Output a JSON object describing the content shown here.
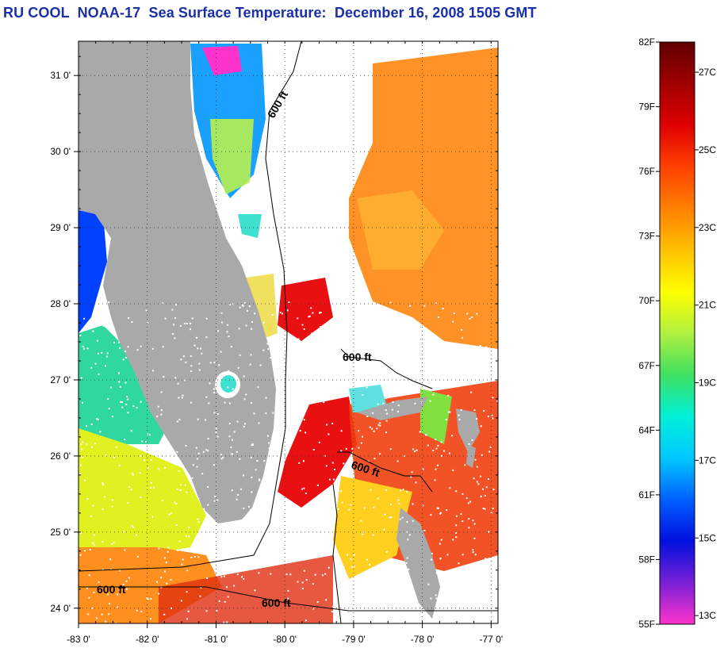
{
  "title": "RU COOL  NOAA-17  Sea Surface Temperature:  December 16, 2008 1505 GMT",
  "map": {
    "lon_range": [
      -83.0,
      -76.9
    ],
    "lat_range": [
      23.8,
      31.45
    ],
    "lon_ticks": [
      {
        "value": -83,
        "label": "-83 0'"
      },
      {
        "value": -82,
        "label": "-82 0'"
      },
      {
        "value": -81,
        "label": "-81 0'"
      },
      {
        "value": -80,
        "label": "-80 0'"
      },
      {
        "value": -79,
        "label": "-79 0'"
      },
      {
        "value": -78,
        "label": "-78 0'"
      },
      {
        "value": -77,
        "label": "-77 0'"
      }
    ],
    "lat_ticks": [
      {
        "value": 31,
        "label": "31 0'"
      },
      {
        "value": 30,
        "label": "30 0'"
      },
      {
        "value": 29,
        "label": "29 0'"
      },
      {
        "value": 28,
        "label": "28 0'"
      },
      {
        "value": 27,
        "label": "27 0'"
      },
      {
        "value": 26,
        "label": "26 0'"
      },
      {
        "value": 25,
        "label": "25 0'"
      },
      {
        "value": 24,
        "label": "24 0'"
      }
    ],
    "grid": "dotted",
    "contour_labels": [
      "600 ft",
      "600 ft",
      "600 ft",
      "600 ft",
      "600 ft"
    ],
    "colors": {
      "land": "#a9a9a9",
      "cloud": "#ffffff",
      "contour": "#000000"
    }
  },
  "colorbar": {
    "orientation": "vertical",
    "fahrenheit_labels": [
      "82F",
      "79F",
      "76F",
      "73F",
      "70F",
      "67F",
      "64F",
      "61F",
      "58F",
      "55F"
    ],
    "celsius_labels": [
      "27C",
      "25C",
      "23C",
      "21C",
      "19C",
      "17C",
      "15C",
      "13C"
    ],
    "range_F": [
      55,
      82
    ],
    "colors_low_to_high": [
      "#ff33cc",
      "#7a1fd6",
      "#0010e0",
      "#0060ff",
      "#00c8ff",
      "#00f0d8",
      "#40e060",
      "#b0f040",
      "#ffff00",
      "#ffc000",
      "#ff8000",
      "#ff4000",
      "#e00000",
      "#a00000",
      "#600000"
    ]
  }
}
